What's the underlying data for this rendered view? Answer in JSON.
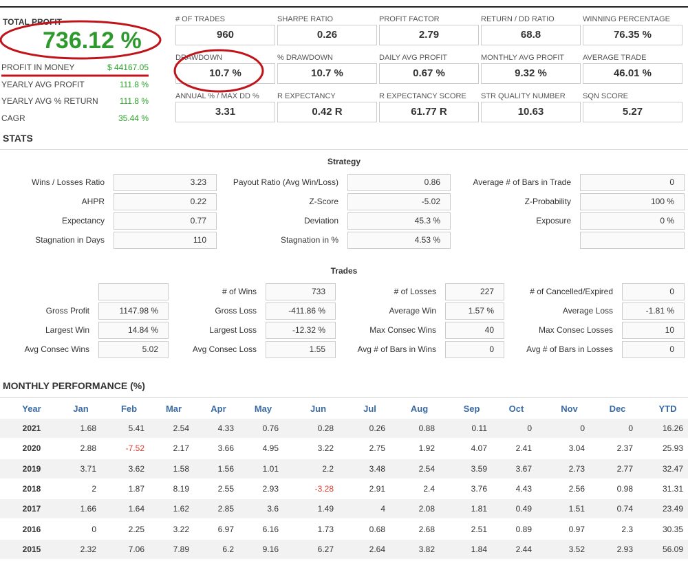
{
  "summary": {
    "total_profit": {
      "label": "TOTAL PROFIT",
      "value": "736.12 %"
    },
    "stats": [
      {
        "label": "PROFIT IN MONEY",
        "value": "$ 44167.05"
      },
      {
        "label": "YEARLY AVG PROFIT",
        "value": "111.8 %"
      },
      {
        "label": "YEARLY AVG % RETURN",
        "value": "111.8 %"
      },
      {
        "label": "CAGR",
        "value": "35.44 %"
      }
    ]
  },
  "metrics": [
    [
      {
        "label": "# OF TRADES",
        "value": "960"
      },
      {
        "label": "SHARPE RATIO",
        "value": "0.26"
      },
      {
        "label": "PROFIT FACTOR",
        "value": "2.79"
      },
      {
        "label": "RETURN / DD RATIO",
        "value": "68.8"
      },
      {
        "label": "WINNING PERCENTAGE",
        "value": "76.35 %"
      }
    ],
    [
      {
        "label": "DRAWDOWN",
        "value": "10.7 %"
      },
      {
        "label": "% DRAWDOWN",
        "value": "10.7 %"
      },
      {
        "label": "DAILY AVG PROFIT",
        "value": "0.67 %"
      },
      {
        "label": "MONTHLY AVG PROFIT",
        "value": "9.32 %"
      },
      {
        "label": "AVERAGE TRADE",
        "value": "46.01 %"
      }
    ],
    [
      {
        "label": "ANNUAL % / MAX DD %",
        "value": "3.31"
      },
      {
        "label": "R EXPECTANCY",
        "value": "0.42 R"
      },
      {
        "label": "R EXPECTANCY SCORE",
        "value": "61.77 R"
      },
      {
        "label": "STR QUALITY NUMBER",
        "value": "10.63"
      },
      {
        "label": "SQN SCORE",
        "value": "5.27"
      }
    ]
  ],
  "stats": {
    "title": "STATS",
    "strategy": {
      "title": "Strategy",
      "rows": [
        [
          {
            "label": "Wins / Losses Ratio",
            "value": "3.23"
          },
          {
            "label": "Payout Ratio (Avg Win/Loss)",
            "value": "0.86"
          },
          {
            "label": "Average # of Bars in Trade",
            "value": "0"
          }
        ],
        [
          {
            "label": "AHPR",
            "value": "0.22"
          },
          {
            "label": "Z-Score",
            "value": "-5.02"
          },
          {
            "label": "Z-Probability",
            "value": "100 %"
          }
        ],
        [
          {
            "label": "Expectancy",
            "value": "0.77"
          },
          {
            "label": "Deviation",
            "value": "45.3 %"
          },
          {
            "label": "Exposure",
            "value": "0 %"
          }
        ],
        [
          {
            "label": "Stagnation in Days",
            "value": "110"
          },
          {
            "label": "Stagnation in %",
            "value": "4.53 %"
          },
          {
            "label": null,
            "value": null
          }
        ]
      ]
    },
    "trades": {
      "title": "Trades",
      "rows": [
        [
          {
            "label": null,
            "value": null
          },
          {
            "label": "# of Wins",
            "value": "733"
          },
          {
            "label": "# of Losses",
            "value": "227"
          },
          {
            "label": "# of Cancelled/Expired",
            "value": "0"
          }
        ],
        [
          {
            "label": "Gross Profit",
            "value": "1147.98 %"
          },
          {
            "label": "Gross Loss",
            "value": "-411.86 %"
          },
          {
            "label": "Average Win",
            "value": "1.57 %"
          },
          {
            "label": "Average Loss",
            "value": "-1.81 %"
          }
        ],
        [
          {
            "label": "Largest Win",
            "value": "14.84 %"
          },
          {
            "label": "Largest Loss",
            "value": "-12.32 %"
          },
          {
            "label": "Max Consec Wins",
            "value": "40"
          },
          {
            "label": "Max Consec Losses",
            "value": "10"
          }
        ],
        [
          {
            "label": "Avg Consec Wins",
            "value": "5.02"
          },
          {
            "label": "Avg Consec Loss",
            "value": "1.55"
          },
          {
            "label": "Avg # of Bars in Wins",
            "value": "0"
          },
          {
            "label": "Avg # of Bars in Losses",
            "value": "0"
          }
        ]
      ]
    }
  },
  "monthly": {
    "title": "MONTHLY PERFORMANCE (%)",
    "columns": [
      "Year",
      "Jan",
      "Feb",
      "Mar",
      "Apr",
      "May",
      "Jun",
      "Jul",
      "Aug",
      "Sep",
      "Oct",
      "Nov",
      "Dec",
      "YTD"
    ],
    "rows": [
      [
        2021,
        1.68,
        5.41,
        2.54,
        4.33,
        0.76,
        0.28,
        0.26,
        0.88,
        0.11,
        0,
        0,
        0,
        16.26
      ],
      [
        2020,
        2.88,
        -7.52,
        2.17,
        3.66,
        4.95,
        3.22,
        2.75,
        1.92,
        4.07,
        2.41,
        3.04,
        2.37,
        25.93
      ],
      [
        2019,
        3.71,
        3.62,
        1.58,
        1.56,
        1.01,
        2.2,
        3.48,
        2.54,
        3.59,
        3.67,
        2.73,
        2.77,
        32.47
      ],
      [
        2018,
        2,
        1.87,
        8.19,
        2.55,
        2.93,
        -3.28,
        2.91,
        2.4,
        3.76,
        4.43,
        2.56,
        0.98,
        31.31
      ],
      [
        2017,
        1.66,
        1.64,
        1.62,
        2.85,
        3.6,
        1.49,
        4,
        2.08,
        1.81,
        0.49,
        1.51,
        0.74,
        23.49
      ],
      [
        2016,
        0,
        2.25,
        3.22,
        6.97,
        6.16,
        1.73,
        0.68,
        2.68,
        2.51,
        0.89,
        0.97,
        2.3,
        30.35
      ],
      [
        2015,
        2.32,
        7.06,
        7.89,
        6.2,
        9.16,
        6.27,
        2.64,
        3.82,
        1.84,
        2.44,
        3.52,
        2.93,
        56.09
      ]
    ]
  }
}
